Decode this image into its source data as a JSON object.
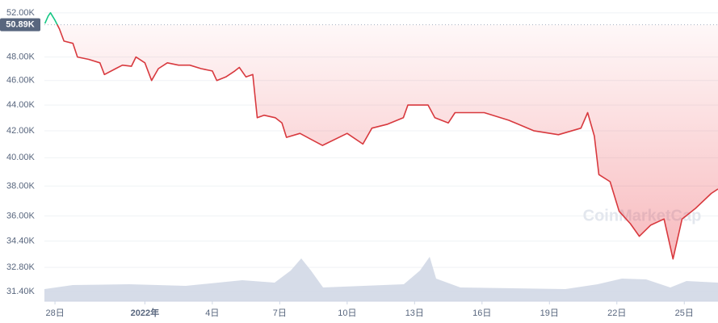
{
  "chart_data": {
    "type": "line",
    "watermark": "CoinMarketCap",
    "color": "#d8393e",
    "up_color": "#16c784",
    "fill_color": "#ea3943",
    "log_y": true,
    "grid": true,
    "reference": {
      "value": 50890,
      "label": "50.89K"
    },
    "ylim": [
      30850,
      52600
    ],
    "yticks": [
      {
        "value": 52000,
        "label": "52.00K"
      },
      {
        "value": 48000,
        "label": "48.00K"
      },
      {
        "value": 46000,
        "label": "46.00K"
      },
      {
        "value": 44000,
        "label": "44.00K"
      },
      {
        "value": 42000,
        "label": "42.00K"
      },
      {
        "value": 40000,
        "label": "40.00K"
      },
      {
        "value": 38000,
        "label": "38.00K"
      },
      {
        "value": 36000,
        "label": "36.00K"
      },
      {
        "value": 34400,
        "label": "34.40K"
      },
      {
        "value": 32800,
        "label": "32.80K"
      },
      {
        "value": 31400,
        "label": "31.40K"
      }
    ],
    "xlim": [
      -0.47,
      29.5
    ],
    "xticks": [
      {
        "value": 0,
        "label": "28日"
      },
      {
        "value": 4,
        "label": "2022年"
      },
      {
        "value": 7,
        "label": "4日"
      },
      {
        "value": 10,
        "label": "7日"
      },
      {
        "value": 13,
        "label": "10日"
      },
      {
        "value": 16,
        "label": "13日"
      },
      {
        "value": 19,
        "label": "16日"
      },
      {
        "value": 22,
        "label": "19日"
      },
      {
        "value": 25,
        "label": "22日"
      },
      {
        "value": 28,
        "label": "25日"
      }
    ],
    "x": [
      -0.45,
      -0.3,
      -0.2,
      0,
      0.2,
      0.4,
      0.8,
      1.0,
      1.5,
      2.0,
      2.2,
      2.7,
      3.0,
      3.4,
      3.6,
      4.0,
      4.3,
      4.6,
      5.0,
      5.5,
      6.0,
      6.5,
      7.0,
      7.2,
      7.6,
      8.0,
      8.2,
      8.5,
      8.8,
      9.0,
      9.3,
      9.8,
      10.1,
      10.3,
      10.9,
      11.9,
      13.0,
      13.7,
      14.1,
      14.8,
      15.5,
      15.7,
      16.6,
      16.9,
      17.5,
      17.8,
      19.1,
      20.2,
      21.3,
      22.4,
      23.4,
      23.7,
      24.0,
      24.2,
      24.7,
      25.1,
      25.6,
      26.0,
      26.5,
      27.1,
      27.5,
      27.9,
      28.5,
      29.2,
      29.5
    ],
    "values": [
      51000,
      51700,
      52000,
      51300,
      50500,
      49400,
      49200,
      48000,
      47800,
      47500,
      46500,
      47000,
      47300,
      47200,
      48000,
      47500,
      46000,
      47000,
      47500,
      47300,
      47300,
      47000,
      46800,
      46000,
      46300,
      46800,
      47100,
      46300,
      46500,
      43000,
      43200,
      43000,
      42600,
      41500,
      41800,
      40900,
      41800,
      41000,
      42200,
      42500,
      43000,
      44000,
      44000,
      43000,
      42600,
      43400,
      43400,
      42800,
      42000,
      41700,
      42200,
      43400,
      41600,
      38800,
      38300,
      36300,
      35500,
      34700,
      35400,
      35800,
      33300,
      35800,
      36500,
      37500,
      37800
    ]
  }
}
